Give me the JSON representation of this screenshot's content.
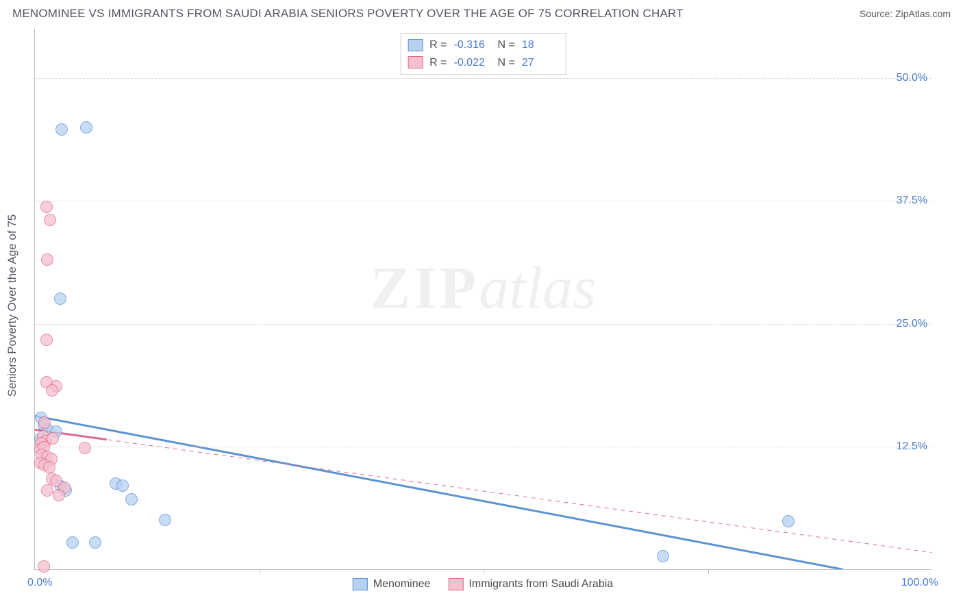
{
  "title": "MENOMINEE VS IMMIGRANTS FROM SAUDI ARABIA SENIORS POVERTY OVER THE AGE OF 75 CORRELATION CHART",
  "source": "Source: ZipAtlas.com",
  "watermark": {
    "bold": "ZIP",
    "italic": "atlas"
  },
  "ylabel": "Seniors Poverty Over the Age of 75",
  "chart": {
    "type": "scatter-correlation",
    "background_color": "#ffffff",
    "grid_color": "#d8d8d8",
    "border_color": "#bfbfbf",
    "xlim": [
      0,
      100
    ],
    "ylim": [
      0,
      55
    ],
    "xticks": [
      0,
      100
    ],
    "xtick_labels": [
      "0.0%",
      "100.0%"
    ],
    "xtick_minor": [
      25,
      50,
      75
    ],
    "yticks": [
      12.5,
      25.0,
      37.5,
      50.0
    ],
    "ytick_labels": [
      "12.5%",
      "25.0%",
      "37.5%",
      "50.0%"
    ],
    "title_fontsize": 17,
    "label_fontsize": 17,
    "tick_fontsize": 16,
    "tick_color": "#4a7bd0",
    "marker_radius": 9,
    "marker_opacity": 0.75,
    "line_width_solid": 3,
    "line_width_dashed": 1
  },
  "series": [
    {
      "name": "Menominee",
      "fill_color": "#b6d1ef",
      "stroke_color": "#5c93d6",
      "R": "-0.316",
      "N": "18",
      "points": [
        {
          "x": 3.0,
          "y": 44.7
        },
        {
          "x": 5.7,
          "y": 44.9
        },
        {
          "x": 2.8,
          "y": 27.5
        },
        {
          "x": 0.7,
          "y": 15.4
        },
        {
          "x": 1.0,
          "y": 14.6
        },
        {
          "x": 1.4,
          "y": 14.2
        },
        {
          "x": 2.4,
          "y": 14.0
        },
        {
          "x": 0.6,
          "y": 13.2
        },
        {
          "x": 2.9,
          "y": 8.4
        },
        {
          "x": 9.0,
          "y": 8.7
        },
        {
          "x": 9.8,
          "y": 8.5
        },
        {
          "x": 3.4,
          "y": 8.0
        },
        {
          "x": 10.8,
          "y": 7.1
        },
        {
          "x": 14.5,
          "y": 5.0
        },
        {
          "x": 4.2,
          "y": 2.7
        },
        {
          "x": 6.7,
          "y": 2.7
        },
        {
          "x": 70.0,
          "y": 1.3
        },
        {
          "x": 84.0,
          "y": 4.9
        }
      ],
      "trend_solid": {
        "x1": 0,
        "y1": 15.6,
        "x2": 90,
        "y2": 0
      },
      "trend_dashed": {
        "x1": 0,
        "y1": 15.6,
        "x2": 100,
        "y2": -1.7
      }
    },
    {
      "name": "Immigrants from Saudi Arabia",
      "fill_color": "#f4c0ce",
      "stroke_color": "#e06a8c",
      "R": "-0.022",
      "N": "27",
      "points": [
        {
          "x": 1.3,
          "y": 36.8
        },
        {
          "x": 1.7,
          "y": 35.5
        },
        {
          "x": 1.4,
          "y": 31.5
        },
        {
          "x": 1.3,
          "y": 23.3
        },
        {
          "x": 1.3,
          "y": 19.0
        },
        {
          "x": 2.4,
          "y": 18.6
        },
        {
          "x": 1.9,
          "y": 18.2
        },
        {
          "x": 1.1,
          "y": 14.9
        },
        {
          "x": 0.9,
          "y": 13.5
        },
        {
          "x": 1.2,
          "y": 13.0
        },
        {
          "x": 2.0,
          "y": 13.3
        },
        {
          "x": 0.7,
          "y": 12.8
        },
        {
          "x": 0.6,
          "y": 12.2
        },
        {
          "x": 1.0,
          "y": 12.4
        },
        {
          "x": 5.6,
          "y": 12.3
        },
        {
          "x": 0.8,
          "y": 11.6
        },
        {
          "x": 1.4,
          "y": 11.4
        },
        {
          "x": 1.8,
          "y": 11.2
        },
        {
          "x": 0.6,
          "y": 10.8
        },
        {
          "x": 1.1,
          "y": 10.6
        },
        {
          "x": 1.6,
          "y": 10.4
        },
        {
          "x": 1.9,
          "y": 9.2
        },
        {
          "x": 2.4,
          "y": 9.0
        },
        {
          "x": 1.4,
          "y": 8.0
        },
        {
          "x": 3.3,
          "y": 8.3
        },
        {
          "x": 2.7,
          "y": 7.5
        },
        {
          "x": 1.0,
          "y": 0.3
        }
      ],
      "trend_solid": {
        "x1": 0,
        "y1": 14.2,
        "x2": 8,
        "y2": 13.2
      },
      "trend_dashed": {
        "x1": 0,
        "y1": 14.2,
        "x2": 100,
        "y2": 1.7
      }
    }
  ],
  "legend_top": {
    "r_label": "R =",
    "n_label": "N ="
  },
  "legend_bottom": [
    {
      "label": "Menominee",
      "series": 0
    },
    {
      "label": "Immigrants from Saudi Arabia",
      "series": 1
    }
  ]
}
